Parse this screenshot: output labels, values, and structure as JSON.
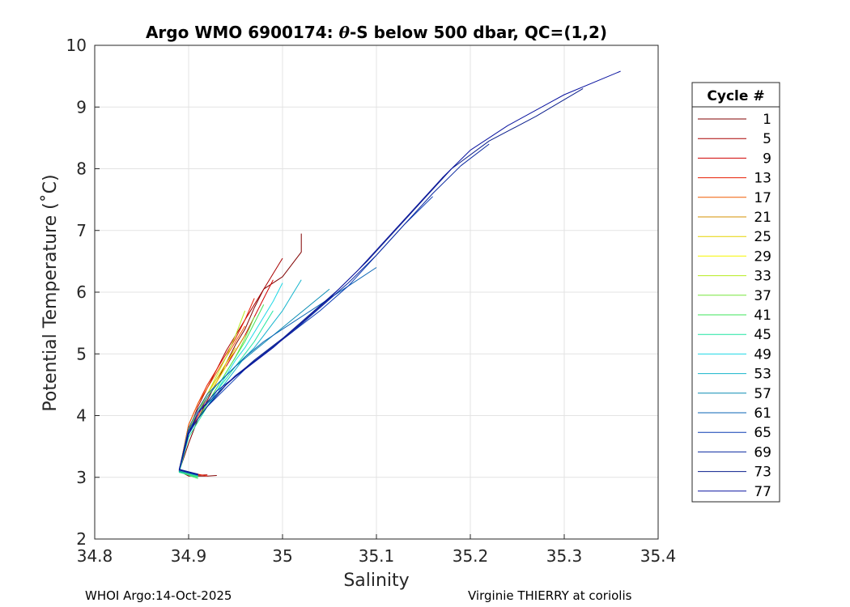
{
  "chart_data": {
    "type": "line",
    "title_prefix": "Argo WMO 6900174: ",
    "title_theta": "θ",
    "title_suffix": "-S below 500 dbar,  QC=(1,2)",
    "xlabel": "Salinity",
    "ylabel": "Potential Temperature (˚C)",
    "xlim": [
      34.8,
      35.4
    ],
    "ylim": [
      2,
      10
    ],
    "xticks": [
      "34.8",
      "34.9",
      "35",
      "35.1",
      "35.2",
      "35.3",
      "35.4"
    ],
    "yticks": [
      "2",
      "3",
      "4",
      "5",
      "6",
      "7",
      "8",
      "9",
      "10"
    ],
    "grid": true,
    "legend_title": "Cycle #",
    "legend_position": "right",
    "legend": [
      {
        "label": "1",
        "color": "#800000"
      },
      {
        "label": "5",
        "color": "#a80000"
      },
      {
        "label": "9",
        "color": "#d00000"
      },
      {
        "label": "13",
        "color": "#e81c00"
      },
      {
        "label": "17",
        "color": "#f05a00"
      },
      {
        "label": "21",
        "color": "#d69200"
      },
      {
        "label": "25",
        "color": "#e6d300"
      },
      {
        "label": "29",
        "color": "#f5f500"
      },
      {
        "label": "33",
        "color": "#b6ec1e"
      },
      {
        "label": "37",
        "color": "#76e63c"
      },
      {
        "label": "41",
        "color": "#3ce65a"
      },
      {
        "label": "45",
        "color": "#1ee6a0"
      },
      {
        "label": "49",
        "color": "#1ed8e6"
      },
      {
        "label": "53",
        "color": "#14b4cc"
      },
      {
        "label": "57",
        "color": "#0a8cb4"
      },
      {
        "label": "61",
        "color": "#0a64b4"
      },
      {
        "label": "65",
        "color": "#0a3cb4"
      },
      {
        "label": "69",
        "color": "#0a28a0"
      },
      {
        "label": "73",
        "color": "#0a1e8c"
      },
      {
        "label": "77",
        "color": "#0a14a0"
      }
    ],
    "series": [
      {
        "name": "1",
        "color": "#800000",
        "x": [
          35.02,
          35.02,
          35.01,
          35.0,
          34.98,
          34.97,
          34.96,
          34.95,
          34.94,
          34.93,
          34.92,
          34.91,
          34.9,
          34.89,
          34.9,
          34.92,
          34.93
        ],
        "y": [
          6.95,
          6.65,
          6.45,
          6.25,
          6.05,
          5.75,
          5.4,
          5.15,
          4.85,
          4.55,
          4.25,
          3.95,
          3.55,
          3.1,
          3.02,
          3.02,
          3.03
        ]
      },
      {
        "name": "5",
        "color": "#a80000",
        "x": [
          35.0,
          34.99,
          34.98,
          34.97,
          34.96,
          34.95,
          34.94,
          34.93,
          34.92,
          34.91,
          34.9,
          34.89,
          34.9,
          34.92
        ],
        "y": [
          6.55,
          6.3,
          6.05,
          5.8,
          5.55,
          5.3,
          5.05,
          4.75,
          4.45,
          4.15,
          3.75,
          3.1,
          3.03,
          3.04
        ]
      },
      {
        "name": "9",
        "color": "#d00000",
        "x": [
          34.99,
          34.98,
          34.97,
          34.96,
          34.95,
          34.94,
          34.93,
          34.92,
          34.91,
          34.9,
          34.89,
          34.91
        ],
        "y": [
          6.2,
          5.9,
          5.6,
          5.3,
          5.05,
          4.8,
          4.55,
          4.3,
          4.0,
          3.7,
          3.12,
          3.03
        ]
      },
      {
        "name": "13",
        "color": "#e81c00",
        "x": [
          34.97,
          34.96,
          34.95,
          34.94,
          34.93,
          34.92,
          34.91,
          34.9,
          34.89,
          34.92
        ],
        "y": [
          5.9,
          5.55,
          5.25,
          5.0,
          4.75,
          4.5,
          4.2,
          3.85,
          3.11,
          3.02
        ]
      },
      {
        "name": "17",
        "color": "#f05a00",
        "x": [
          34.96,
          34.95,
          34.94,
          34.93,
          34.92,
          34.91,
          34.9,
          34.89,
          34.91
        ],
        "y": [
          5.45,
          5.2,
          4.95,
          4.7,
          4.45,
          4.2,
          3.85,
          3.1,
          3.02
        ]
      },
      {
        "name": "21",
        "color": "#d69200",
        "x": [
          34.96,
          34.95,
          34.94,
          34.93,
          34.92,
          34.91,
          34.9,
          34.89,
          34.91
        ],
        "y": [
          5.3,
          5.05,
          4.85,
          4.6,
          4.35,
          4.1,
          3.8,
          3.11,
          3.03
        ]
      },
      {
        "name": "25",
        "color": "#e6d300",
        "x": [
          34.95,
          34.94,
          34.93,
          34.92,
          34.91,
          34.9,
          34.89,
          34.91
        ],
        "y": [
          5.1,
          4.85,
          4.6,
          4.35,
          4.1,
          3.8,
          3.1,
          3.02
        ]
      },
      {
        "name": "29",
        "color": "#f5f500",
        "x": [
          34.94,
          34.93,
          34.92,
          34.91,
          34.9,
          34.89,
          34.9
        ],
        "y": [
          4.8,
          4.55,
          4.3,
          4.05,
          3.8,
          3.12,
          3.04
        ]
      },
      {
        "name": "33",
        "color": "#b6ec1e",
        "x": [
          34.96,
          34.95,
          34.94,
          34.93,
          34.92,
          34.91,
          34.9,
          34.89,
          34.91
        ],
        "y": [
          5.7,
          5.3,
          4.95,
          4.65,
          4.35,
          4.05,
          3.75,
          3.09,
          3.0
        ]
      },
      {
        "name": "37",
        "color": "#76e63c",
        "x": [
          34.97,
          34.96,
          34.95,
          34.94,
          34.93,
          34.92,
          34.91,
          34.9,
          34.89,
          34.91
        ],
        "y": [
          5.6,
          5.25,
          4.95,
          4.7,
          4.45,
          4.2,
          3.95,
          3.7,
          3.08,
          3.01
        ]
      },
      {
        "name": "41",
        "color": "#3ce65a",
        "x": [
          34.98,
          34.97,
          34.96,
          34.95,
          34.94,
          34.93,
          34.92,
          34.91,
          34.9,
          34.89,
          34.91
        ],
        "y": [
          5.8,
          5.5,
          5.2,
          4.95,
          4.7,
          4.45,
          4.2,
          3.95,
          3.7,
          3.09,
          2.98
        ]
      },
      {
        "name": "45",
        "color": "#1ee6a0",
        "x": [
          34.99,
          34.98,
          34.97,
          34.96,
          34.95,
          34.94,
          34.93,
          34.92,
          34.91,
          34.9,
          34.89,
          34.91
        ],
        "y": [
          5.7,
          5.45,
          5.2,
          5.0,
          4.8,
          4.6,
          4.4,
          4.15,
          3.9,
          3.65,
          3.08,
          3.0
        ]
      },
      {
        "name": "49",
        "color": "#1ed8e6",
        "x": [
          35.0,
          34.99,
          34.98,
          34.97,
          34.96,
          34.95,
          34.94,
          34.93,
          34.92,
          34.91,
          34.9,
          34.89,
          34.91
        ],
        "y": [
          6.15,
          5.85,
          5.6,
          5.35,
          5.1,
          4.9,
          4.65,
          4.4,
          4.15,
          3.95,
          3.7,
          3.1,
          3.02
        ]
      },
      {
        "name": "53",
        "color": "#14b4cc",
        "x": [
          35.02,
          35.01,
          35.0,
          34.99,
          34.98,
          34.97,
          34.96,
          34.95,
          34.94,
          34.93,
          34.92,
          34.91,
          34.9,
          34.89,
          34.91
        ],
        "y": [
          6.2,
          5.95,
          5.7,
          5.5,
          5.3,
          5.1,
          4.95,
          4.75,
          4.55,
          4.35,
          4.15,
          3.95,
          3.7,
          3.1,
          3.03
        ]
      },
      {
        "name": "57",
        "color": "#0a8cb4",
        "x": [
          35.05,
          35.03,
          35.01,
          34.99,
          34.97,
          34.95,
          34.93,
          34.92,
          34.91,
          34.9,
          34.89,
          34.91
        ],
        "y": [
          6.05,
          5.8,
          5.55,
          5.3,
          5.05,
          4.8,
          4.5,
          4.3,
          4.05,
          3.75,
          3.1,
          3.03
        ]
      },
      {
        "name": "61",
        "color": "#0a64b4",
        "x": [
          35.1,
          35.07,
          35.04,
          35.01,
          34.98,
          34.96,
          34.94,
          34.92,
          34.91,
          34.9,
          34.89,
          34.91
        ],
        "y": [
          6.4,
          6.1,
          5.8,
          5.5,
          5.2,
          4.95,
          4.65,
          4.35,
          4.1,
          3.8,
          3.12,
          3.04
        ]
      },
      {
        "name": "65",
        "color": "#0a3cb4",
        "x": [
          35.16,
          35.13,
          35.1,
          35.07,
          35.04,
          35.01,
          34.98,
          34.96,
          34.94,
          34.92,
          34.91,
          34.9,
          34.89,
          34.91
        ],
        "y": [
          7.55,
          7.1,
          6.6,
          6.1,
          5.7,
          5.35,
          5.0,
          4.75,
          4.45,
          4.15,
          3.95,
          3.7,
          3.12,
          3.04
        ]
      },
      {
        "name": "69",
        "color": "#0a28a0",
        "x": [
          35.22,
          35.19,
          35.16,
          35.13,
          35.1,
          35.07,
          35.04,
          35.01,
          34.98,
          34.95,
          34.93,
          34.91,
          34.9,
          34.89,
          34.91
        ],
        "y": [
          8.4,
          8.05,
          7.6,
          7.1,
          6.6,
          6.15,
          5.75,
          5.35,
          5.0,
          4.65,
          4.35,
          4.05,
          3.7,
          3.12,
          3.05
        ]
      },
      {
        "name": "73",
        "color": "#0a1e8c",
        "x": [
          35.32,
          35.27,
          35.22,
          35.18,
          35.15,
          35.12,
          35.09,
          35.06,
          35.03,
          35.0,
          34.97,
          34.94,
          34.92,
          34.9,
          34.89,
          34.91
        ],
        "y": [
          9.3,
          8.85,
          8.45,
          8.0,
          7.5,
          7.0,
          6.5,
          6.05,
          5.65,
          5.25,
          4.9,
          4.5,
          4.15,
          3.75,
          3.13,
          3.05
        ]
      },
      {
        "name": "77",
        "color": "#0a14a0",
        "x": [
          35.36,
          35.3,
          35.24,
          35.2,
          35.17,
          35.14,
          35.11,
          35.08,
          35.05,
          35.02,
          34.99,
          34.96,
          34.93,
          34.91,
          34.9,
          34.89,
          34.91
        ],
        "y": [
          9.58,
          9.2,
          8.7,
          8.3,
          7.85,
          7.35,
          6.85,
          6.35,
          5.9,
          5.5,
          5.1,
          4.75,
          4.4,
          4.05,
          3.7,
          3.12,
          3.04
        ]
      }
    ]
  },
  "footer": {
    "left": "WHOI Argo:14-Oct-2025",
    "right": "Virginie THIERRY at coriolis"
  }
}
